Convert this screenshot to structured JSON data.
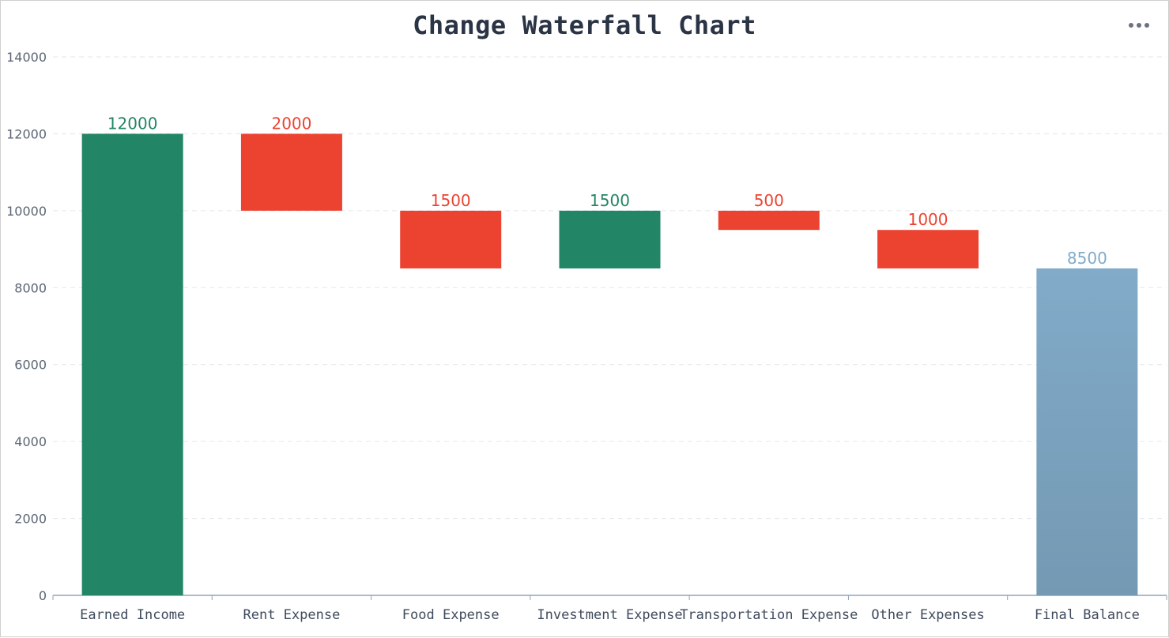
{
  "chart_data": {
    "type": "bar",
    "subtype": "waterfall",
    "title": "Change Waterfall Chart",
    "categories": [
      "Earned Income",
      "Rent Expense",
      "Food Expense",
      "Investment Expense",
      "Transportation Expense",
      "Other Expenses",
      "Final Balance"
    ],
    "bars": [
      {
        "category": "Earned Income",
        "label": "12000",
        "base": 0,
        "top": 12000,
        "kind": "increase"
      },
      {
        "category": "Rent Expense",
        "label": "2000",
        "base": 10000,
        "top": 12000,
        "kind": "decrease"
      },
      {
        "category": "Food Expense",
        "label": "1500",
        "base": 8500,
        "top": 10000,
        "kind": "decrease"
      },
      {
        "category": "Investment Expense",
        "label": "1500",
        "base": 8500,
        "top": 10000,
        "kind": "increase"
      },
      {
        "category": "Transportation Expense",
        "label": "500",
        "base": 9500,
        "top": 10000,
        "kind": "decrease"
      },
      {
        "category": "Other Expenses",
        "label": "1000",
        "base": 8500,
        "top": 9500,
        "kind": "decrease"
      },
      {
        "category": "Final Balance",
        "label": "8500",
        "base": 0,
        "top": 8500,
        "kind": "total"
      }
    ],
    "y_ticks": [
      "0",
      "2000",
      "4000",
      "6000",
      "8000",
      "10000",
      "12000",
      "14000"
    ],
    "ylim": [
      0,
      14000
    ],
    "xlabel": "",
    "ylabel": "",
    "grid": "horizontal-dashed",
    "colors": {
      "increase": "#228565",
      "decrease": "#ec4331",
      "total_top": "#81abc9",
      "total_bottom": "#7499b3",
      "axis": "#8fa3bd",
      "grid": "#e3e6ea",
      "tick_text": "#5b6574",
      "category_text": "#3e4a5c",
      "title_text": "#2a3444"
    }
  },
  "toolbar": {
    "more_icon": "more-horizontal-icon"
  }
}
